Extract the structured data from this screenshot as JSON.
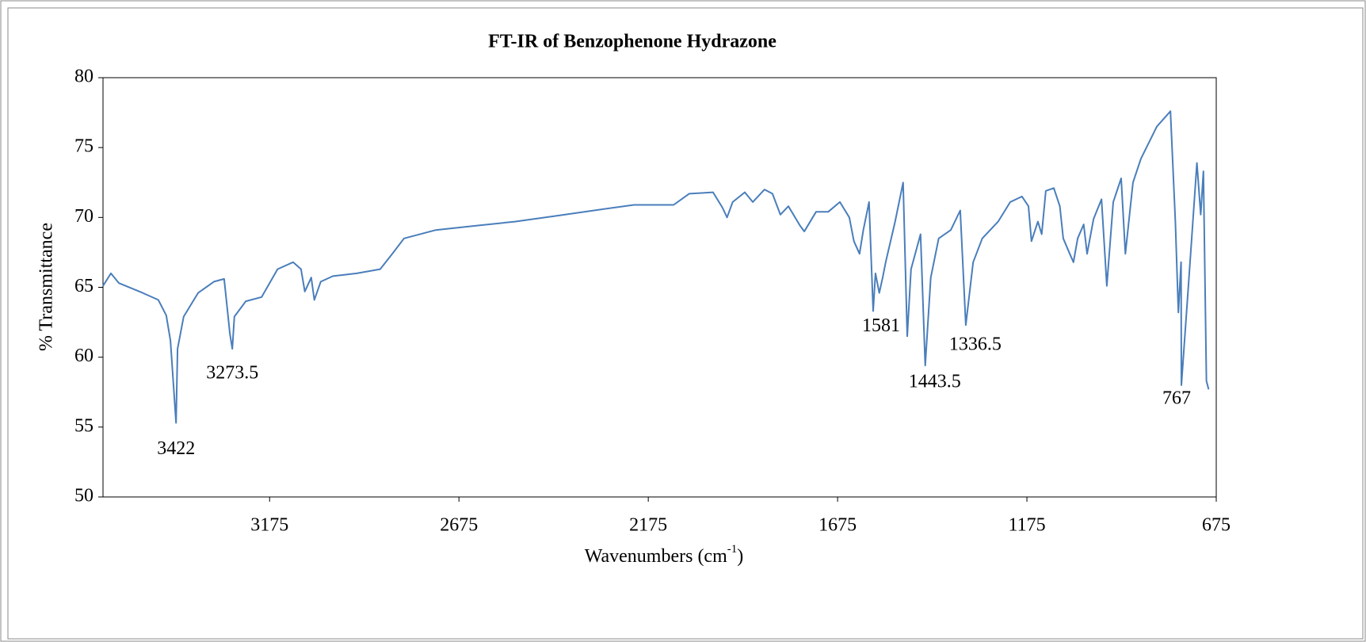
{
  "chart_data": {
    "type": "line",
    "title": "FT-IR of Benzophenone Hydrazone",
    "x_label": [
      "Wavenumbers (cm",
      "-1",
      ")"
    ],
    "y_label": "% Transmittance",
    "color": "#4a7ebb",
    "xlim": [
      3615,
      675
    ],
    "ylim": [
      50,
      80
    ],
    "xticks": [
      3175,
      2675,
      2175,
      1675,
      1175,
      675
    ],
    "yticks": [
      50,
      55,
      60,
      65,
      70,
      75,
      80
    ],
    "annotations": [
      3422,
      3273.5,
      1581,
      1443.5,
      1336.5,
      767
    ],
    "x": [
      3615,
      3594,
      3573,
      3510,
      3469,
      3448,
      3437,
      3422,
      3418,
      3402,
      3364,
      3322,
      3295,
      3280,
      3273.5,
      3268,
      3238,
      3196,
      3154,
      3113,
      3092,
      3082,
      3065,
      3057,
      3040,
      3008,
      2945,
      2883,
      2851,
      2820,
      2736,
      2632,
      2527,
      2422,
      2318,
      2213,
      2108,
      2067,
      2004,
      1979,
      1967,
      1952,
      1920,
      1899,
      1868,
      1847,
      1826,
      1805,
      1774,
      1763,
      1732,
      1700,
      1669,
      1644,
      1632,
      1617,
      1607,
      1592,
      1581,
      1575,
      1565,
      1556,
      1548,
      1523,
      1502,
      1491,
      1481,
      1456,
      1443.5,
      1429,
      1408,
      1376,
      1351,
      1336.5,
      1317,
      1293,
      1251,
      1219,
      1188,
      1171,
      1163,
      1146,
      1136,
      1125,
      1104,
      1088,
      1079,
      1062,
      1052,
      1041,
      1025,
      1016,
      999,
      978,
      964,
      947,
      926,
      915,
      895,
      874,
      832,
      796,
      783,
      775,
      768,
      767,
      747,
      726,
      716,
      709,
      701,
      695
    ],
    "values": [
      65.1,
      66,
      65.3,
      64.6,
      64.1,
      63,
      61.2,
      55.3,
      60.6,
      62.9,
      64.6,
      65.4,
      65.6,
      61.7,
      60.6,
      62.9,
      64,
      64.3,
      66.3,
      66.8,
      66.3,
      64.7,
      65.7,
      64.1,
      65.4,
      65.8,
      66,
      66.3,
      67.4,
      68.5,
      69.1,
      69.4,
      69.7,
      70.1,
      70.5,
      70.9,
      70.9,
      71.7,
      71.8,
      70.7,
      70,
      71.1,
      71.8,
      71.1,
      72,
      71.7,
      70.2,
      70.8,
      69.4,
      69,
      70.4,
      70.4,
      71.1,
      70,
      68.3,
      67.4,
      69.1,
      71.1,
      63.3,
      66,
      64.6,
      65.7,
      66.8,
      69.7,
      72.5,
      61.5,
      66.3,
      68.8,
      59.4,
      65.7,
      68.5,
      69.1,
      70.5,
      62.3,
      66.8,
      68.5,
      69.7,
      71.1,
      71.5,
      70.8,
      68.3,
      69.7,
      68.8,
      71.9,
      72.1,
      70.8,
      68.5,
      67.4,
      66.8,
      68.5,
      69.5,
      67.4,
      69.9,
      71.3,
      65.1,
      71.1,
      72.8,
      67.4,
      72.5,
      74.2,
      76.5,
      77.6,
      69.7,
      63.2,
      66.8,
      58,
      65.7,
      73.9,
      70.2,
      73.3,
      58.3,
      57.7
    ]
  }
}
